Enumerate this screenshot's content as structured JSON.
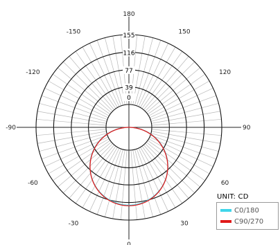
{
  "chart_data": {
    "type": "polar",
    "unit_label": "UNIT: CD",
    "angle_ticks": [
      {
        "angle": 180,
        "label": "180"
      },
      {
        "angle": 150,
        "label": "150"
      },
      {
        "angle": 120,
        "label": "120"
      },
      {
        "angle": 90,
        "label": "90"
      },
      {
        "angle": 60,
        "label": "60"
      },
      {
        "angle": 30,
        "label": "30"
      },
      {
        "angle": 0,
        "label": "0"
      },
      {
        "angle": -30,
        "label": "-30"
      },
      {
        "angle": -60,
        "label": "-60"
      },
      {
        "angle": -90,
        "label": "-90"
      },
      {
        "angle": -120,
        "label": "-120"
      },
      {
        "angle": -150,
        "label": "-150"
      }
    ],
    "radial_ticks": [
      0,
      39,
      77,
      116,
      155
    ],
    "radial_labels": [
      "0",
      "39",
      "77",
      "116",
      "155"
    ],
    "r_max": 155,
    "spoke_step_deg": 5,
    "series": [
      {
        "name": "C0/180",
        "color": "#3fd6ea",
        "peak": 130,
        "shape": 1.0
      },
      {
        "name": "C90/270",
        "color": "#e01a1a",
        "peak": 131,
        "shape": 1.03
      }
    ]
  }
}
